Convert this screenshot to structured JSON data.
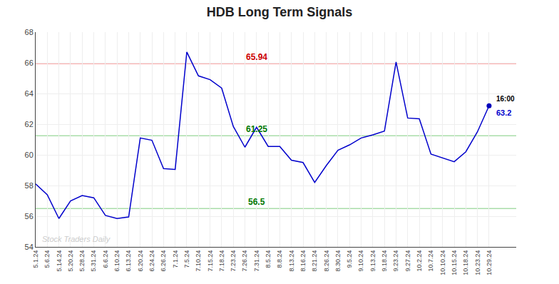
{
  "chart_data": {
    "type": "line",
    "title": "HDB Long Term Signals",
    "categories": [
      "5.1.24",
      "5.6.24",
      "5.14.24",
      "5.20.24",
      "5.28.24",
      "5.31.24",
      "6.6.24",
      "6.10.24",
      "6.13.24",
      "6.20.24",
      "6.24.24",
      "6.26.24",
      "7.1.24",
      "7.5.24",
      "7.10.24",
      "7.15.24",
      "7.18.24",
      "7.23.24",
      "7.26.24",
      "7.31.24",
      "8.5.24",
      "8.8.24",
      "8.13.24",
      "8.16.24",
      "8.21.24",
      "8.26.24",
      "8.30.24",
      "9.5.24",
      "9.10.24",
      "9.13.24",
      "9.18.24",
      "9.23.24",
      "9.27.24",
      "10.2.24",
      "10.7.24",
      "10.10.24",
      "10.15.24",
      "10.18.24",
      "10.23.24",
      "10.29.24"
    ],
    "values": [
      58.1,
      57.4,
      55.85,
      57.0,
      57.35,
      57.2,
      56.05,
      55.85,
      55.95,
      61.1,
      60.95,
      59.1,
      59.05,
      66.7,
      65.15,
      64.9,
      64.35,
      61.85,
      60.5,
      61.8,
      60.55,
      60.55,
      59.65,
      59.5,
      58.2,
      59.3,
      60.3,
      60.65,
      61.1,
      61.3,
      61.55,
      66.05,
      62.4,
      62.35,
      60.05,
      59.8,
      59.55,
      60.2,
      61.5,
      63.2
    ],
    "color": "#0000cc",
    "ylim": [
      54,
      68
    ],
    "yticks": [
      54,
      56,
      58,
      60,
      62,
      64,
      66,
      68
    ],
    "grid": true,
    "hlines": [
      {
        "value": 65.94,
        "label": "65.94",
        "color": "#ffaaaa",
        "label_color": "#cc0000"
      },
      {
        "value": 61.25,
        "label": "61.25",
        "color": "#aaddaa",
        "label_color": "#007700"
      },
      {
        "value": 56.5,
        "label": "56.5",
        "color": "#aaddaa",
        "label_color": "#007700"
      }
    ],
    "end_point": {
      "color": "#0000bb",
      "labels": [
        {
          "text": "16:00",
          "color": "#000000"
        },
        {
          "text": "63.2",
          "color": "#0000cc"
        }
      ]
    },
    "watermark": {
      "text": "Stock Traders Daily",
      "color": "#cccccc"
    }
  }
}
